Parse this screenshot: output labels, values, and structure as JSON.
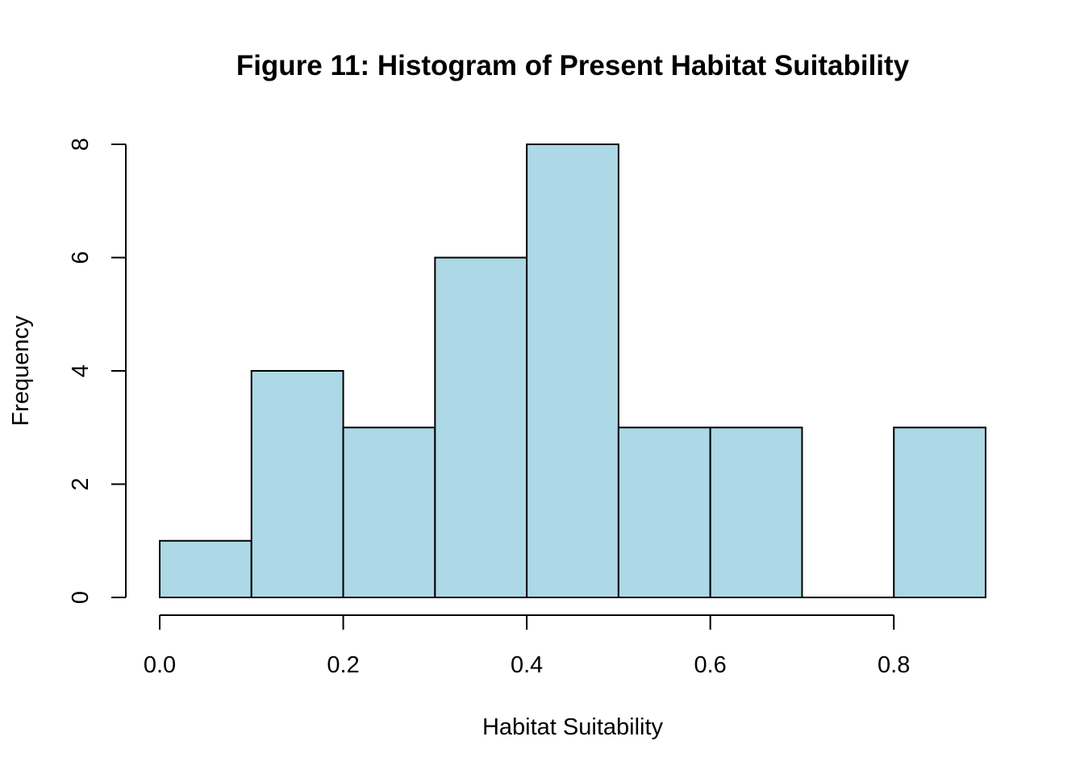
{
  "chart_data": {
    "type": "bar",
    "title": "Figure 11: Histogram of Present Habitat Suitability",
    "xlabel": "Habitat Suitability",
    "ylabel": "Frequency",
    "bin_edges": [
      0.0,
      0.1,
      0.2,
      0.3,
      0.4,
      0.5,
      0.6,
      0.7,
      0.8,
      0.9
    ],
    "values": [
      1,
      4,
      3,
      6,
      8,
      3,
      3,
      0,
      3
    ],
    "xlim": [
      0.0,
      0.9
    ],
    "ylim": [
      0,
      8
    ],
    "x_ticks": [
      0.0,
      0.2,
      0.4,
      0.6,
      0.8
    ],
    "x_tick_labels": [
      "0.0",
      "0.2",
      "0.4",
      "0.6",
      "0.8"
    ],
    "y_ticks": [
      0,
      2,
      4,
      6,
      8
    ],
    "y_tick_labels": [
      "0",
      "2",
      "4",
      "6",
      "8"
    ],
    "bar_color": "#add8e6",
    "edge_color": "#000000",
    "grid": false
  }
}
